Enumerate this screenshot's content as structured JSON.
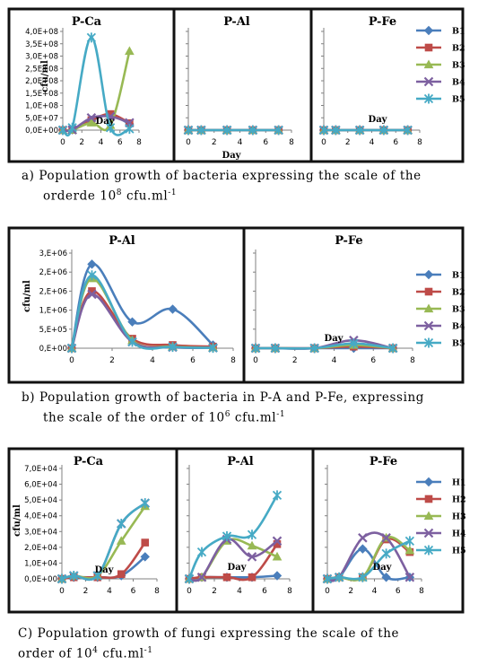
{
  "ylabel": "cfu/ml",
  "xlabel": "Day",
  "x_ticks": [
    0,
    2,
    4,
    6,
    8
  ],
  "colors": {
    "s1": "#4a7ebb",
    "s2": "#be4b48",
    "s3": "#98b954",
    "s4": "#7d60a0",
    "s5": "#46aac5"
  },
  "chart_data": [
    {
      "type": "line",
      "group": "a",
      "x": [
        0,
        1,
        3,
        5,
        7
      ],
      "ylim": [
        0,
        400000000
      ],
      "y_ticks": [
        "0,0E+00",
        "5,0E+07",
        "1,0E+08",
        "1,5E+08",
        "2,0E+08",
        "2,5E+08",
        "3,0E+08",
        "3,5E+08",
        "4,0E+08"
      ],
      "legend": [
        "B1",
        "B2",
        "B3",
        "B4",
        "B5"
      ],
      "panels": [
        {
          "title": "P-Ca",
          "series": [
            {
              "name": "B1",
              "values": [
                0,
                1000000,
                40000000,
                60000000,
                25000000
              ]
            },
            {
              "name": "B2",
              "values": [
                0,
                1000000,
                40000000,
                65000000,
                28000000
              ]
            },
            {
              "name": "B3",
              "values": [
                0,
                1000000,
                30000000,
                20000000,
                320000000
              ]
            },
            {
              "name": "B4",
              "values": [
                0,
                1000000,
                50000000,
                55000000,
                30000000
              ]
            },
            {
              "name": "B5",
              "values": [
                0,
                10000000,
                375000000,
                10000000,
                5000000
              ]
            }
          ]
        },
        {
          "title": "P-Al",
          "series": [
            {
              "name": "B1",
              "values": [
                0,
                0,
                0,
                0,
                0
              ]
            },
            {
              "name": "B2",
              "values": [
                0,
                0,
                0,
                0,
                0
              ]
            },
            {
              "name": "B3",
              "values": [
                0,
                0,
                0,
                0,
                0
              ]
            },
            {
              "name": "B4",
              "values": [
                0,
                0,
                0,
                0,
                0
              ]
            },
            {
              "name": "B5",
              "values": [
                0,
                0,
                0,
                0,
                0
              ]
            }
          ]
        },
        {
          "title": "P-Fe",
          "series": [
            {
              "name": "B1",
              "values": [
                0,
                0,
                0,
                0,
                0
              ]
            },
            {
              "name": "B2",
              "values": [
                0,
                0,
                0,
                0,
                0
              ]
            },
            {
              "name": "B3",
              "values": [
                0,
                0,
                0,
                0,
                0
              ]
            },
            {
              "name": "B4",
              "values": [
                0,
                0,
                0,
                0,
                0
              ]
            },
            {
              "name": "B5",
              "values": [
                0,
                0,
                0,
                0,
                0
              ]
            }
          ]
        }
      ]
    },
    {
      "type": "line",
      "group": "b",
      "x": [
        0,
        1,
        3,
        5,
        7
      ],
      "ylim": [
        0,
        3000000
      ],
      "y_ticks": [
        "0,E+00",
        "5,E+05",
        "1,E+06",
        "2,E+06",
        "2,E+06",
        "3,E+06"
      ],
      "legend": [
        "B1",
        "B2",
        "B3",
        "B4",
        "B5"
      ],
      "panels": [
        {
          "title": "P-Al",
          "series": [
            {
              "name": "B1",
              "values": [
                0,
                2650000,
                830000,
                1230000,
                100000
              ]
            },
            {
              "name": "B2",
              "values": [
                0,
                1800000,
                300000,
                100000,
                50000
              ]
            },
            {
              "name": "B3",
              "values": [
                0,
                2200000,
                250000,
                50000,
                20000
              ]
            },
            {
              "name": "B4",
              "values": [
                0,
                1700000,
                200000,
                30000,
                10000
              ]
            },
            {
              "name": "B5",
              "values": [
                0,
                2300000,
                200000,
                40000,
                10000
              ]
            }
          ]
        },
        {
          "title": "P-Fe",
          "series": [
            {
              "name": "B1",
              "values": [
                0,
                0,
                0,
                0,
                0
              ]
            },
            {
              "name": "B2",
              "values": [
                0,
                0,
                0,
                50000,
                0
              ]
            },
            {
              "name": "B3",
              "values": [
                0,
                0,
                0,
                100000,
                0
              ]
            },
            {
              "name": "B4",
              "values": [
                0,
                0,
                0,
                250000,
                0
              ]
            },
            {
              "name": "B5",
              "values": [
                0,
                0,
                0,
                150000,
                0
              ]
            }
          ]
        }
      ]
    },
    {
      "type": "line",
      "group": "c",
      "x": [
        0,
        1,
        3,
        5,
        7
      ],
      "ylim": [
        0,
        70000
      ],
      "y_ticks": [
        "0,0E+00",
        "1,0E+04",
        "2,0E+04",
        "3,0E+04",
        "4,0E+04",
        "5,0E+04",
        "6,0E+04",
        "7,0E+04"
      ],
      "legend": [
        "H1",
        "H2",
        "H3",
        "H4",
        "H5"
      ],
      "panels": [
        {
          "title": "P-Ca",
          "series": [
            {
              "name": "H1",
              "values": [
                0,
                1000,
                1000,
                2000,
                14000
              ]
            },
            {
              "name": "H2",
              "values": [
                0,
                1000,
                1000,
                3000,
                23000
              ]
            },
            {
              "name": "H3",
              "values": [
                0,
                2000,
                2000,
                24000,
                46000
              ]
            },
            {
              "name": "H4",
              "values": [
                0,
                2000,
                2000,
                35000,
                48000
              ]
            },
            {
              "name": "H5",
              "values": [
                0,
                2000,
                2000,
                35000,
                48000
              ]
            }
          ]
        },
        {
          "title": "P-Al",
          "series": [
            {
              "name": "H1",
              "values": [
                0,
                1000,
                1000,
                1000,
                2000
              ]
            },
            {
              "name": "H2",
              "values": [
                0,
                1000,
                1000,
                1000,
                22000
              ]
            },
            {
              "name": "H3",
              "values": [
                0,
                1000,
                24000,
                21000,
                14000
              ]
            },
            {
              "name": "H4",
              "values": [
                0,
                1000,
                25000,
                14000,
                24000
              ]
            },
            {
              "name": "H5",
              "values": [
                0,
                17000,
                27000,
                28000,
                53000
              ]
            }
          ]
        },
        {
          "title": "P-Fe",
          "series": [
            {
              "name": "H1",
              "values": [
                0,
                1000,
                19000,
                1000,
                1000
              ]
            },
            {
              "name": "H2",
              "values": [
                0,
                1000,
                1000,
                25000,
                17000
              ]
            },
            {
              "name": "H3",
              "values": [
                0,
                1000,
                1000,
                26000,
                18000
              ]
            },
            {
              "name": "H4",
              "values": [
                0,
                1000,
                26000,
                26000,
                1000
              ]
            },
            {
              "name": "H5",
              "values": [
                0,
                1000,
                1000,
                16000,
                24000
              ]
            }
          ]
        }
      ]
    }
  ],
  "captions": {
    "a_line1": "a)  Population growth of bacteria expressing the scale of the",
    "a_line2": "orderde 10",
    "a_sup": "8",
    "a_tail": "  cfu.ml",
    "a_unit_sup": "-1",
    "b_line1": "b)  Population growth of bacteria in P-A and P-Fe, expressing",
    "b_line2": "the scale of the order of 10",
    "b_sup": "6",
    "b_tail": " cfu.ml",
    "b_unit_sup": "-1",
    "c_line1": "C)  Population growth of fungi expressing the scale of the",
    "c_line2": "order of 10",
    "c_sup": "4",
    "c_tail": " cfu.ml",
    "c_unit_sup": "-1"
  }
}
